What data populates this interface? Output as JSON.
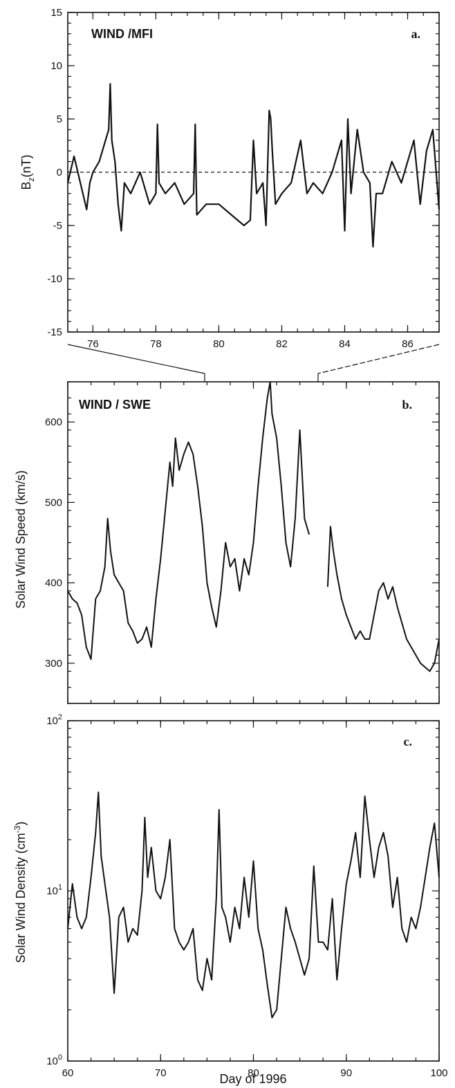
{
  "chart_data": [
    {
      "type": "line",
      "panel": "a.",
      "title": "WIND  /MFI",
      "ylabel": "B",
      "ylabel_sub": "z",
      "ylabel_unit": "(nT)",
      "xlabel": "",
      "xlim": [
        75.2,
        87
      ],
      "ylim": [
        -15,
        15
      ],
      "yticks": [
        -15,
        -10,
        -5,
        0,
        5,
        10,
        15
      ],
      "yticklabels": [
        "-15",
        "-10",
        "-5",
        "0",
        "5",
        "10",
        "15"
      ],
      "xticks": [
        76,
        78,
        80,
        82,
        84,
        86
      ],
      "xticklabels": [
        "76",
        "78",
        "80",
        "82",
        "84",
        "86"
      ],
      "reference_line": {
        "y": 0,
        "style": "dashed"
      },
      "series": [
        {
          "x": [
            75.2,
            75.4,
            75.6,
            75.8,
            75.9,
            76.0,
            76.2,
            76.4,
            76.5,
            76.55,
            76.6,
            76.7,
            76.8,
            76.9,
            77.0,
            77.2,
            77.5,
            77.8,
            78.0,
            78.05,
            78.1,
            78.3,
            78.6,
            78.9,
            79.2,
            79.25,
            79.3,
            79.6,
            80.0,
            80.4,
            80.8,
            81.0,
            81.1,
            81.2,
            81.4,
            81.5,
            81.6,
            81.65,
            81.7,
            81.8,
            82.0,
            82.3,
            82.6,
            82.8,
            83.0,
            83.3,
            83.6,
            83.9,
            84.0,
            84.1,
            84.2,
            84.4,
            84.6,
            84.8,
            84.9,
            85.0,
            85.2,
            85.5,
            85.8,
            86.0,
            86.2,
            86.4,
            86.6,
            86.8,
            87.0
          ],
          "y": [
            -1,
            1.5,
            -1,
            -3.5,
            -1,
            0,
            1,
            3,
            4,
            8.3,
            3,
            1,
            -3,
            -5.5,
            -1,
            -2,
            0,
            -3,
            -2,
            4.5,
            -1,
            -2,
            -1,
            -3,
            -2,
            4.5,
            -4,
            -3,
            -3,
            -4,
            -5,
            -4.5,
            3,
            -2,
            -1,
            -5,
            5.8,
            5,
            2,
            -3,
            -2,
            -1,
            3,
            -2,
            -1,
            -2,
            0,
            3,
            -5.5,
            5,
            -2,
            4,
            0,
            -1,
            -7,
            -2,
            -2,
            1,
            -1,
            1,
            3,
            -3,
            2,
            4,
            -3.5
          ]
        }
      ]
    },
    {
      "type": "line",
      "panel": "b.",
      "title": "WIND / SWE",
      "ylabel": "Solar Wind Speed (km/s)",
      "xlabel": "",
      "xlim": [
        60,
        100
      ],
      "ylim": [
        250,
        650
      ],
      "yticks": [
        300,
        400,
        500,
        600
      ],
      "yticklabels": [
        "300",
        "400",
        "500",
        "600"
      ],
      "series": [
        {
          "x": [
            60,
            60.5,
            61,
            61.5,
            62,
            62.5,
            63,
            63.5,
            64,
            64.3,
            64.6,
            65,
            65.5,
            66,
            66.5,
            67,
            67.5,
            68,
            68.5,
            69,
            69.5,
            70,
            70.5,
            71,
            71.3,
            71.6,
            72,
            72.5,
            73,
            73.5,
            74,
            74.5,
            75,
            75.5,
            76,
            76.5,
            77,
            77.5,
            78,
            78.5,
            79,
            79.5,
            80,
            80.5,
            81,
            81.5,
            81.8,
            82,
            82.5,
            83,
            83.5,
            84,
            84.5,
            85,
            85.5,
            86,
            86.5,
            87,
            87.5,
            88,
            88.3,
            88.6,
            89,
            89.5,
            90,
            90.5,
            91,
            91.5,
            92,
            92.5,
            93,
            93.5,
            94,
            94.5,
            95,
            95.5,
            96,
            96.5,
            97,
            97.5,
            98,
            98.5,
            99,
            99.5,
            100
          ],
          "y": [
            390,
            380,
            375,
            360,
            320,
            305,
            380,
            390,
            420,
            480,
            440,
            410,
            400,
            390,
            350,
            340,
            325,
            330,
            345,
            320,
            380,
            430,
            490,
            550,
            520,
            580,
            540,
            560,
            575,
            560,
            520,
            470,
            400,
            370,
            345,
            390,
            450,
            420,
            430,
            390,
            430,
            410,
            450,
            520,
            580,
            630,
            650,
            610,
            580,
            520,
            450,
            420,
            480,
            590,
            480,
            460,
            null,
            null,
            null,
            395,
            470,
            440,
            410,
            380,
            360,
            345,
            330,
            340,
            330,
            330,
            360,
            390,
            400,
            380,
            395,
            370,
            350,
            330,
            320,
            310,
            300,
            295,
            290,
            300,
            330
          ]
        }
      ]
    },
    {
      "type": "line",
      "panel": "c.",
      "title": "",
      "ylabel": "Solar Wind Density (cm",
      "ylabel_sup": "-3",
      "ylabel_close": ")",
      "xlabel": "Day of 1996",
      "xlim": [
        60,
        100
      ],
      "ylim": [
        1,
        100
      ],
      "yscale": "log",
      "yticklabels": [
        {
          "value": 1,
          "base": "10",
          "exp": "0"
        },
        {
          "value": 10,
          "base": "10",
          "exp": "1"
        },
        {
          "value": 100,
          "base": "10",
          "exp": "2"
        }
      ],
      "xticks": [
        60,
        70,
        80,
        90,
        100
      ],
      "xticklabels": [
        "60",
        "70",
        "80",
        "90",
        "100"
      ],
      "series": [
        {
          "x": [
            60,
            60.5,
            61,
            61.5,
            62,
            62.5,
            63,
            63.3,
            63.6,
            64,
            64.5,
            65,
            65.5,
            66,
            66.5,
            67,
            67.5,
            68,
            68.3,
            68.6,
            69,
            69.5,
            70,
            70.5,
            71,
            71.5,
            72,
            72.5,
            73,
            73.5,
            74,
            74.5,
            75,
            75.5,
            76,
            76.3,
            76.6,
            77,
            77.5,
            78,
            78.5,
            79,
            79.5,
            80,
            80.5,
            81,
            81.5,
            82,
            82.5,
            83,
            83.5,
            84,
            84.5,
            85,
            85.5,
            86,
            86.5,
            87,
            87.5,
            88,
            88.5,
            89,
            89.5,
            90,
            90.5,
            91,
            91.5,
            92,
            92.5,
            93,
            93.5,
            94,
            94.5,
            95,
            95.5,
            96,
            96.5,
            97,
            97.5,
            98,
            98.5,
            99,
            99.5,
            100
          ],
          "y": [
            6,
            11,
            7,
            6,
            7,
            12,
            22,
            38,
            16,
            11,
            7,
            2.5,
            7,
            8,
            5,
            6,
            5.5,
            10,
            27,
            12,
            18,
            10,
            9,
            12,
            20,
            6,
            5,
            4.5,
            5,
            6,
            3,
            2.6,
            4,
            3,
            9,
            30,
            8,
            7,
            5,
            8,
            6,
            12,
            7,
            15,
            6,
            4.5,
            2.8,
            1.8,
            2,
            4,
            8,
            6,
            5,
            4,
            3.2,
            4,
            14,
            5,
            5,
            4.5,
            9,
            3,
            6,
            11,
            15,
            22,
            12,
            36,
            20,
            12,
            18,
            22,
            16,
            8,
            12,
            6,
            5,
            7,
            6,
            8,
            12,
            18,
            25,
            12
          ]
        }
      ]
    }
  ]
}
